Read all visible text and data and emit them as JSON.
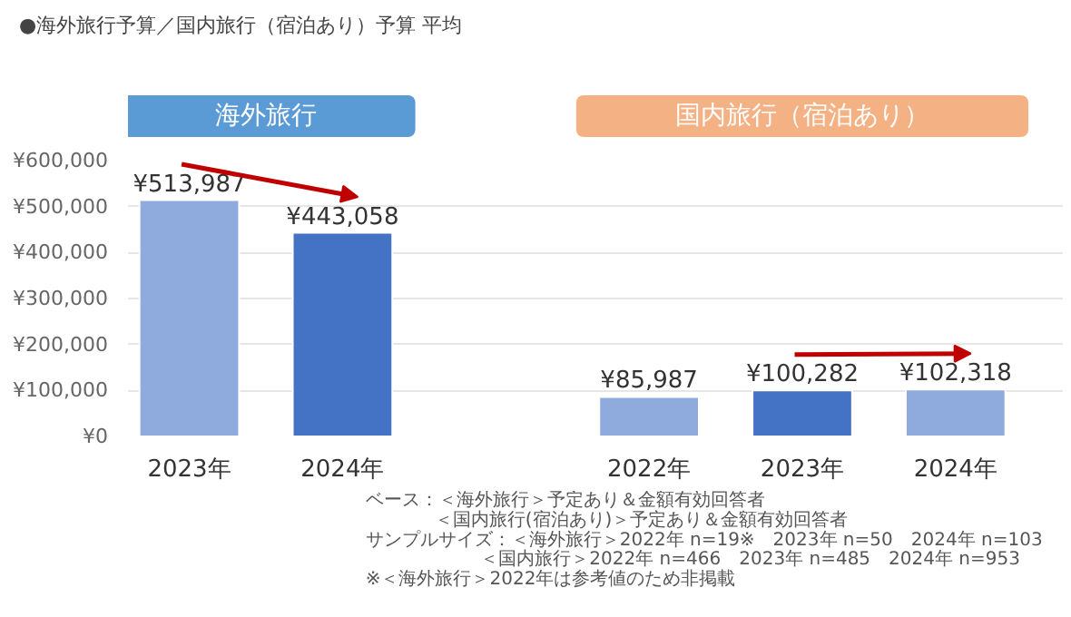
{
  "chart_data": {
    "type": "bar",
    "title": "●海外旅行予算／国内旅行（宿泊あり）予算 平均",
    "categories": [
      "2023年",
      "2024年",
      null,
      "2022年",
      "2023年",
      "2024年"
    ],
    "values": [
      513987,
      443058,
      null,
      85987,
      100282,
      102318
    ],
    "colors": [
      "#8faadc",
      "#4472c4",
      null,
      "#8faadc",
      "#4472c4",
      "#8faadc"
    ],
    "value_labels": [
      "¥513,987",
      "¥443,058",
      null,
      "¥85,987",
      "¥100,282",
      "¥102,318"
    ],
    "ylim": [
      0,
      600000
    ],
    "yticks": [
      {
        "value": 0,
        "label": "¥0"
      },
      {
        "value": 100000,
        "label": "¥100,000"
      },
      {
        "value": 200000,
        "label": "¥200,000"
      },
      {
        "value": 300000,
        "label": "¥300,000"
      },
      {
        "value": 400000,
        "label": "¥400,000"
      },
      {
        "value": 500000,
        "label": "¥500,000"
      },
      {
        "value": 600000,
        "label": "¥600,000"
      }
    ],
    "grid": "y",
    "annotations": [
      "海外旅行",
      "国内旅行（宿泊あり）",
      "ベース：＜海外旅行＞予定あり＆金額有効回答者",
      "＜国内旅行(宿泊あり)＞予定あり＆金額有効回答者",
      "サンプルサイズ：＜海外旅行＞2022年 n=19※　2023年 n=50　2024年 n=103",
      "＜国内旅行＞2022年 n=466　2023年 n=485　2024年 n=953",
      "※＜海外旅行＞2022年は参考値のため非掲載"
    ]
  }
}
